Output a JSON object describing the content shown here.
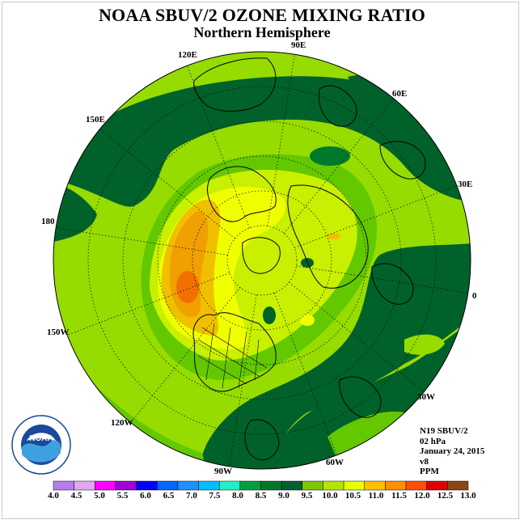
{
  "header": {
    "title": "NOAA SBUV/2 OZONE MIXING RATIO",
    "subtitle": "Northern Hemisphere"
  },
  "longitude_labels": [
    "90E",
    "60E",
    "30E",
    "0",
    "30W",
    "60W",
    "90W",
    "120W",
    "150W",
    "180",
    "150E",
    "120E"
  ],
  "info": {
    "instrument": "N19 SBUV/2",
    "level": "02 hPa",
    "date": "January 24, 2015",
    "version": "v8",
    "units": "PPM"
  },
  "colorbar": {
    "ticks": [
      "4.0",
      "4.5",
      "5.0",
      "5.5",
      "6.0",
      "6.5",
      "7.0",
      "7.5",
      "8.0",
      "8.5",
      "9.0",
      "9.5",
      "10.0",
      "10.5",
      "11.0",
      "11.5",
      "12.0",
      "12.5",
      "13.0"
    ],
    "colors": [
      "#b57cf0",
      "#e0a8f0",
      "#ff00ff",
      "#a000d8",
      "#0000ff",
      "#0066ff",
      "#1e90ff",
      "#00bfff",
      "#20f0c8",
      "#00a040",
      "#007a2a",
      "#006030",
      "#7cc800",
      "#b6e600",
      "#e8ff00",
      "#ffc000",
      "#ff9000",
      "#ff5000",
      "#e00000",
      "#8b4513"
    ]
  },
  "logo": {
    "text": "NOAA",
    "ring_text": "NATIONAL OCEANIC AND ATMOSPHERIC ADMINISTRATION · U.S. DEPARTMENT OF COMMERCE"
  },
  "colors": {
    "dark_green": "#00622a",
    "green": "#64c800",
    "light_green": "#96dc00",
    "yellow_green": "#c8f000",
    "yellow": "#f0ff00",
    "gold": "#f0c000",
    "orange": "#f0a000",
    "dark_orange": "#f07000"
  }
}
